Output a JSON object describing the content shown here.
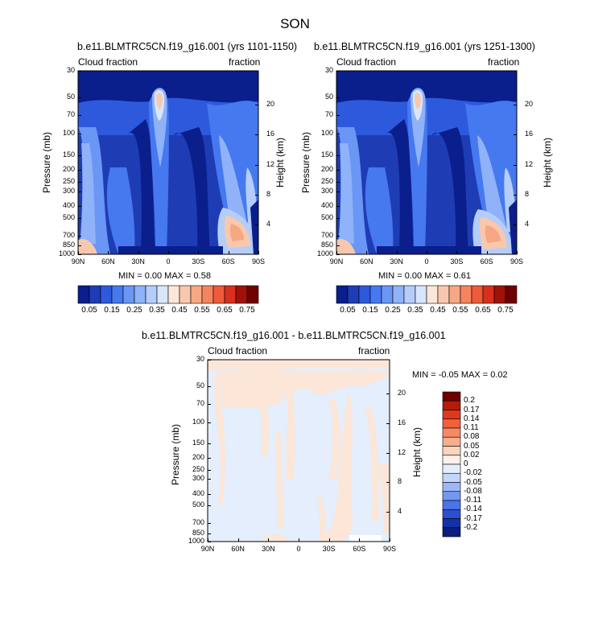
{
  "figure": {
    "title": "SON"
  },
  "panels": [
    {
      "title": "b.e11.BLMTRC5CN.f19_g16.001 (yrs 1101-1150)",
      "left_label": "Cloud fraction",
      "right_label": "fraction",
      "ylabel_left": "Pressure (mb)",
      "ylabel_right": "Height (km)",
      "stats": "MIN =   0.00  MAX =   0.58"
    },
    {
      "title": "b.e11.BLMTRC5CN.f19_g16.001 (yrs 1251-1300)",
      "left_label": "Cloud fraction",
      "right_label": "fraction",
      "ylabel_left": "Pressure (mb)",
      "ylabel_right": "Height (km)",
      "stats": "MIN =   0.00  MAX =   0.61"
    },
    {
      "title": "b.e11.BLMTRC5CN.f19_g16.001 - b.e11.BLMTRC5CN.f19_g16.001",
      "left_label": "Cloud fraction",
      "right_label": "fraction",
      "ylabel_left": "Pressure (mb)",
      "ylabel_right": "Height (km)",
      "stats": "MIN =  -0.05  MAX =   0.02"
    }
  ],
  "axes": {
    "pressure_ticks": [
      "30",
      "50",
      "70",
      "100",
      "150",
      "200",
      "250",
      "300",
      "400",
      "500",
      "700",
      "850",
      "1000"
    ],
    "height_ticks": [
      "20",
      "16",
      "12",
      "8",
      "4"
    ],
    "lat_ticks": [
      "90N",
      "60N",
      "30N",
      "0",
      "30S",
      "60S",
      "90S"
    ]
  },
  "colorbar_main": {
    "labels": [
      "0.05",
      "0.15",
      "0.25",
      "0.35",
      "0.45",
      "0.55",
      "0.65",
      "0.75"
    ],
    "colors": [
      "#0a1e8c",
      "#1e3cb4",
      "#2d5adc",
      "#4678f0",
      "#6a96f5",
      "#8fb2f8",
      "#b4cdfa",
      "#d8e6fc",
      "#fbe6d8",
      "#f8c8ae",
      "#f6a884",
      "#f48460",
      "#ef5a3a",
      "#d8301c",
      "#a01208",
      "#6e0000"
    ]
  },
  "colorbar_diff": {
    "labels": [
      "0.2",
      "0.17",
      "0.14",
      "0.11",
      "0.08",
      "0.05",
      "0.02",
      "0",
      "-0.02",
      "-0.05",
      "-0.08",
      "-0.11",
      "-0.14",
      "-0.17",
      "-0.2"
    ],
    "colors": [
      "#6e0000",
      "#b41c0a",
      "#e0381c",
      "#f2603c",
      "#f58a64",
      "#f7ae8c",
      "#fad4bc",
      "#fbf0ea",
      "#e4eefc",
      "#c4d6fa",
      "#9cb8f6",
      "#7298f2",
      "#4a74ea",
      "#2a50d0",
      "#1432a8",
      "#0a1e80"
    ]
  },
  "chart_data": [
    {
      "type": "heatmap",
      "title": "b.e11.BLMTRC5CN.f19_g16.001 (yrs 1101-1150)",
      "xlabel": "",
      "ylabel": "Pressure (mb)",
      "y2label": "Height (km)",
      "x": [
        "90N",
        "60N",
        "30N",
        "0",
        "30S",
        "60S",
        "90S"
      ],
      "y": [
        30,
        50,
        70,
        100,
        150,
        200,
        250,
        300,
        400,
        500,
        700,
        850,
        1000
      ],
      "min": 0.0,
      "max": 0.58,
      "levels": [
        0.05,
        0.1,
        0.15,
        0.2,
        0.25,
        0.3,
        0.35,
        0.4,
        0.45,
        0.5,
        0.55,
        0.6,
        0.65,
        0.7,
        0.75
      ],
      "features": [
        {
          "where": "upper troposphere near 15N, 150-250 mb",
          "value": 0.5
        },
        {
          "where": "southern subtropics low levels near 70S, 850 mb",
          "value": 0.55
        },
        {
          "where": "stratosphere 30-100 mb",
          "value": 0.02
        },
        {
          "where": "subtropical mid troposphere",
          "value": 0.08
        }
      ]
    },
    {
      "type": "heatmap",
      "title": "b.e11.BLMTRC5CN.f19_g16.001 (yrs 1251-1300)",
      "xlabel": "",
      "ylabel": "Pressure (mb)",
      "y2label": "Height (km)",
      "x": [
        "90N",
        "60N",
        "30N",
        "0",
        "30S",
        "60S",
        "90S"
      ],
      "y": [
        30,
        50,
        70,
        100,
        150,
        200,
        250,
        300,
        400,
        500,
        700,
        850,
        1000
      ],
      "min": 0.0,
      "max": 0.61,
      "levels": [
        0.05,
        0.1,
        0.15,
        0.2,
        0.25,
        0.3,
        0.35,
        0.4,
        0.45,
        0.5,
        0.55,
        0.6,
        0.65,
        0.7,
        0.75
      ],
      "features": [
        {
          "where": "upper troposphere near 15N, 150-250 mb",
          "value": 0.52
        },
        {
          "where": "southern subtropics low levels near 70S, 850 mb",
          "value": 0.58
        },
        {
          "where": "stratosphere 30-100 mb",
          "value": 0.02
        },
        {
          "where": "subtropical mid troposphere",
          "value": 0.08
        }
      ]
    },
    {
      "type": "heatmap",
      "title": "b.e11.BLMTRC5CN.f19_g16.001 - b.e11.BLMTRC5CN.f19_g16.001",
      "xlabel": "",
      "ylabel": "Pressure (mb)",
      "y2label": "Height (km)",
      "x": [
        "90N",
        "60N",
        "30N",
        "0",
        "30S",
        "60S",
        "90S"
      ],
      "y": [
        30,
        50,
        70,
        100,
        150,
        200,
        250,
        300,
        400,
        500,
        700,
        850,
        1000
      ],
      "min": -0.05,
      "max": 0.02,
      "levels": [
        -0.2,
        -0.17,
        -0.14,
        -0.11,
        -0.08,
        -0.05,
        -0.02,
        0,
        0.02,
        0.05,
        0.08,
        0.11,
        0.14,
        0.17,
        0.2
      ],
      "features": [
        {
          "where": "most of domain",
          "value": -0.01
        },
        {
          "where": "upper troposphere 100-300 mb",
          "value": 0.01
        },
        {
          "where": "near 45-60S troposphere",
          "value": 0.01
        }
      ]
    }
  ]
}
